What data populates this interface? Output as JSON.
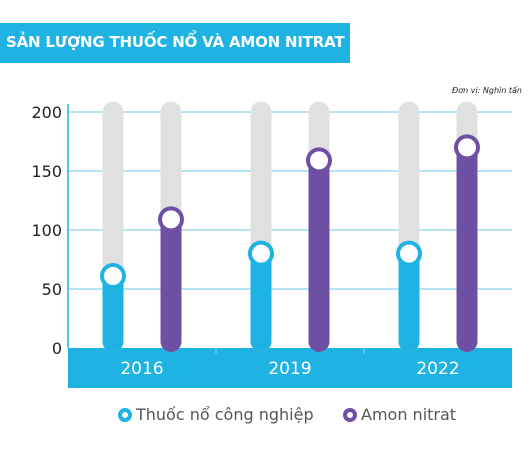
{
  "title": "SẢN LƯỢNG THUỐC NỔ VÀ AMON NITRAT",
  "unit_note": "Đơn vị: Nghìn tấn",
  "legend": [
    {
      "label": "Thuốc nổ công nghiệp",
      "color": "#1fb3e3"
    },
    {
      "label": "Amon nitrat",
      "color": "#6d50a3"
    }
  ],
  "chart_data": {
    "type": "bar",
    "categories": [
      "2016",
      "2019",
      "2022"
    ],
    "series": [
      {
        "name": "Thuốc nổ công nghiệp",
        "values": [
          61,
          80,
          80
        ],
        "color": "#1fb3e3"
      },
      {
        "name": "Amon nitrat",
        "values": [
          109,
          159,
          170
        ],
        "color": "#6d50a3"
      }
    ],
    "ylim": [
      0,
      200
    ],
    "yticks": [
      0,
      50,
      100,
      150,
      200
    ],
    "grid": true,
    "background_track_color": "#e0e0e0",
    "legend_position": "bottom"
  }
}
